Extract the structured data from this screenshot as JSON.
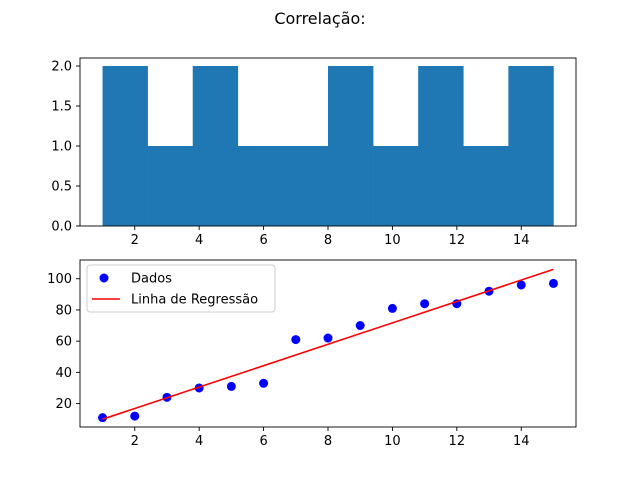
{
  "figure_title": "Correlação:",
  "chart_data": [
    {
      "type": "bar",
      "subtype": "histogram",
      "bins": [
        {
          "start": 1.0,
          "end": 2.4,
          "count": 2
        },
        {
          "start": 2.4,
          "end": 3.8,
          "count": 1
        },
        {
          "start": 3.8,
          "end": 5.2,
          "count": 2
        },
        {
          "start": 5.2,
          "end": 6.6,
          "count": 1
        },
        {
          "start": 6.6,
          "end": 8.0,
          "count": 1
        },
        {
          "start": 8.0,
          "end": 9.4,
          "count": 2
        },
        {
          "start": 9.4,
          "end": 10.8,
          "count": 1
        },
        {
          "start": 10.8,
          "end": 12.2,
          "count": 2
        },
        {
          "start": 12.2,
          "end": 13.6,
          "count": 1
        },
        {
          "start": 13.6,
          "end": 15.0,
          "count": 2
        }
      ],
      "xlim": [
        0.3,
        15.7
      ],
      "ylim": [
        0,
        2.1
      ],
      "xticks": [
        2,
        4,
        6,
        8,
        10,
        12,
        14
      ],
      "yticks": [
        0.0,
        0.5,
        1.0,
        1.5,
        2.0
      ],
      "xticklabels": [
        "2",
        "4",
        "6",
        "8",
        "10",
        "12",
        "14"
      ],
      "yticklabels": [
        "0.0",
        "0.5",
        "1.0",
        "1.5",
        "2.0"
      ],
      "color": "#1f77b4",
      "grid": false
    },
    {
      "type": "scatter",
      "series": [
        {
          "name": "Dados",
          "kind": "scatter",
          "color": "#0000ff",
          "x": [
            1,
            2,
            3,
            4,
            5,
            6,
            7,
            8,
            9,
            10,
            11,
            12,
            13,
            14,
            15
          ],
          "y": [
            11,
            12,
            24,
            30,
            31,
            33,
            61,
            62,
            70,
            81,
            84,
            84,
            92,
            96,
            97
          ]
        },
        {
          "name": "Linha de Regressão",
          "kind": "line",
          "color": "#ff0000",
          "x": [
            1,
            15
          ],
          "y": [
            10,
            106
          ]
        }
      ],
      "xlim": [
        0.3,
        15.7
      ],
      "ylim": [
        5,
        112
      ],
      "xticks": [
        2,
        4,
        6,
        8,
        10,
        12,
        14
      ],
      "yticks": [
        20,
        40,
        60,
        80,
        100
      ],
      "xticklabels": [
        "2",
        "4",
        "6",
        "8",
        "10",
        "12",
        "14"
      ],
      "yticklabels": [
        "20",
        "40",
        "60",
        "80",
        "100"
      ],
      "legend": "top-left",
      "grid": false
    }
  ]
}
